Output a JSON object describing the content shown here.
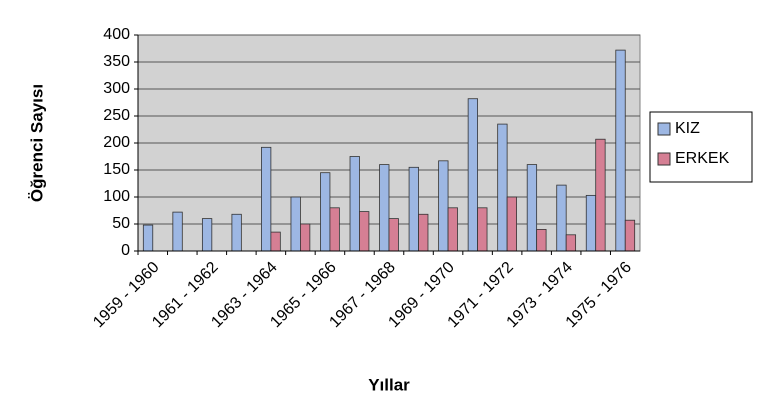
{
  "chart_data": {
    "type": "bar",
    "x_label": "Yıllar",
    "y_label": "Öğrenci Sayısı",
    "categories": [
      "1959 - 1960",
      null,
      "1961 - 1962",
      null,
      "1963 - 1964",
      null,
      "1965 - 1966",
      null,
      "1967 - 1968",
      null,
      "1969 - 1970",
      null,
      "1971 - 1972",
      null,
      "1973 - 1974",
      null,
      "1975 - 1976"
    ],
    "series": [
      {
        "name": "KIZ",
        "color": "#9db7e3",
        "values": [
          48,
          72,
          60,
          68,
          192,
          100,
          145,
          175,
          160,
          155,
          167,
          282,
          235,
          160,
          122,
          103,
          372
        ]
      },
      {
        "name": "ERKEK",
        "color": "#d57f94",
        "values": [
          0,
          0,
          0,
          0,
          35,
          50,
          80,
          73,
          60,
          68,
          80,
          80,
          100,
          40,
          30,
          207,
          57
        ]
      }
    ],
    "ylim": [
      0,
      400
    ],
    "yticks": [
      0,
      50,
      100,
      150,
      200,
      250,
      300,
      350,
      400
    ],
    "grid": true,
    "legend": "right"
  }
}
